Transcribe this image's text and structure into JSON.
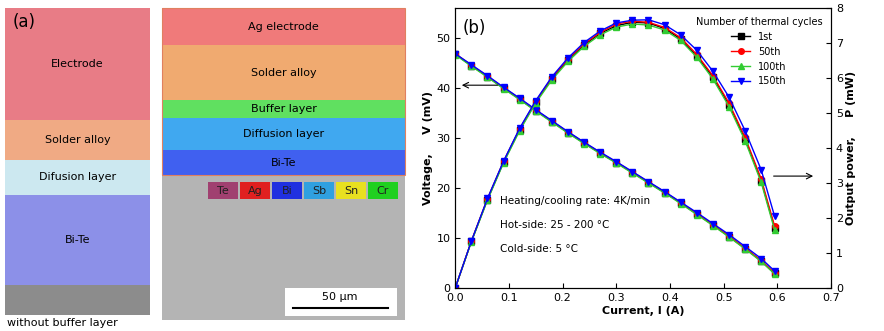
{
  "panel_a": {
    "label": "(a)",
    "left_image": {
      "layers": [
        {
          "name": "Electrode",
          "color": "#e87c86"
        },
        {
          "name": "Solder alloy",
          "color": "#f0aa84"
        },
        {
          "name": "Difusion layer",
          "color": "#cce8f0"
        },
        {
          "name": "Bi-Te",
          "color": "#8c90e8"
        }
      ],
      "caption": "without buffer layer"
    },
    "right_image": {
      "layers": [
        {
          "name": "Ag electrode",
          "color": "#f07a7a"
        },
        {
          "name": "Solder alloy",
          "color": "#f0aa70"
        },
        {
          "name": "Buffer layer",
          "color": "#60e060"
        },
        {
          "name": "Diffusion layer",
          "color": "#40a8f0"
        },
        {
          "name": "Bi-Te",
          "color": "#4060f0"
        }
      ]
    },
    "elements": [
      {
        "name": "Te",
        "color": "#a04070"
      },
      {
        "name": "Ag",
        "color": "#e02020"
      },
      {
        "name": "Bi",
        "color": "#2030e0"
      },
      {
        "name": "Sb",
        "color": "#30a0e0"
      },
      {
        "name": "Sn",
        "color": "#e8e020"
      },
      {
        "name": "Cr",
        "color": "#20d020"
      }
    ],
    "scale_bar": "50 μm"
  },
  "chart_data": {
    "type": "line",
    "panel_label": "(b)",
    "x_label": "Current, I (A)",
    "y_label": "Voltage,     V (mV)",
    "y2_label": "Output power,     P (mW)",
    "legend_title": "Number of thermal cycles",
    "legend": "upper right",
    "annotations": [
      "Heating/cooling rate: 4K/min",
      "Hot-side: 25 - 200 °C",
      "Cold-side: 5 °C"
    ],
    "xlim": [
      0.0,
      0.7
    ],
    "xticks": [
      0.0,
      0.1,
      0.2,
      0.3,
      0.4,
      0.5,
      0.6,
      0.7
    ],
    "ylim": [
      0,
      56
    ],
    "yticks": [
      0,
      10,
      20,
      30,
      40,
      50
    ],
    "y2lim": [
      0,
      8
    ],
    "y2ticks": [
      0,
      1,
      2,
      3,
      4,
      5,
      6,
      7,
      8
    ],
    "x": [
      0.0,
      0.03,
      0.06,
      0.09,
      0.12,
      0.15,
      0.18,
      0.21,
      0.24,
      0.27,
      0.3,
      0.33,
      0.36,
      0.39,
      0.42,
      0.45,
      0.48,
      0.51,
      0.54,
      0.57,
      0.595
    ],
    "series": [
      {
        "name": "1st",
        "color": "#000000",
        "marker": "square",
        "voltage": [
          46.8,
          44.5,
          42.3,
          40.0,
          37.8,
          35.5,
          33.3,
          31.1,
          29.0,
          27.0,
          25.1,
          23.1,
          21.1,
          19.1,
          17.0,
          14.8,
          12.6,
          10.3,
          7.9,
          5.4,
          2.9
        ],
        "power": [
          0.0,
          1.33,
          2.53,
          3.6,
          4.53,
          5.32,
          5.99,
          6.52,
          6.95,
          7.28,
          7.5,
          7.6,
          7.58,
          7.42,
          7.12,
          6.64,
          6.03,
          5.24,
          4.26,
          3.07,
          1.72
        ]
      },
      {
        "name": "50th",
        "color": "#ff0000",
        "marker": "circle",
        "voltage": [
          46.9,
          44.6,
          42.4,
          40.1,
          37.9,
          35.6,
          33.4,
          31.2,
          29.1,
          27.1,
          25.2,
          23.2,
          21.2,
          19.2,
          17.1,
          14.9,
          12.7,
          10.4,
          8.0,
          5.5,
          3.0
        ],
        "power": [
          0.0,
          1.34,
          2.55,
          3.62,
          4.55,
          5.34,
          6.01,
          6.55,
          6.98,
          7.31,
          7.55,
          7.63,
          7.6,
          7.45,
          7.16,
          6.68,
          6.07,
          5.29,
          4.31,
          3.12,
          1.77
        ]
      },
      {
        "name": "100th",
        "color": "#33cc33",
        "marker": "triangle_up",
        "voltage": [
          46.7,
          44.4,
          42.2,
          39.9,
          37.7,
          35.4,
          33.2,
          31.0,
          28.9,
          26.9,
          25.0,
          23.0,
          21.0,
          19.0,
          16.9,
          14.7,
          12.5,
          10.2,
          7.8,
          5.3,
          2.8
        ],
        "power": [
          0.0,
          1.32,
          2.51,
          3.58,
          4.5,
          5.29,
          5.95,
          6.48,
          6.91,
          7.24,
          7.46,
          7.55,
          7.52,
          7.38,
          7.08,
          6.6,
          5.98,
          5.19,
          4.21,
          3.02,
          1.66
        ]
      },
      {
        "name": "150th",
        "color": "#0000ff",
        "marker": "triangle_down",
        "voltage": [
          46.9,
          44.7,
          42.5,
          40.2,
          38.0,
          35.7,
          33.5,
          31.3,
          29.2,
          27.2,
          25.3,
          23.3,
          21.3,
          19.3,
          17.2,
          15.1,
          12.9,
          10.7,
          8.3,
          5.9,
          3.4
        ],
        "power": [
          0.0,
          1.34,
          2.56,
          3.63,
          4.57,
          5.36,
          6.04,
          6.58,
          7.02,
          7.35,
          7.58,
          7.66,
          7.67,
          7.53,
          7.24,
          6.8,
          6.2,
          5.46,
          4.5,
          3.38,
          2.05
        ]
      }
    ]
  }
}
